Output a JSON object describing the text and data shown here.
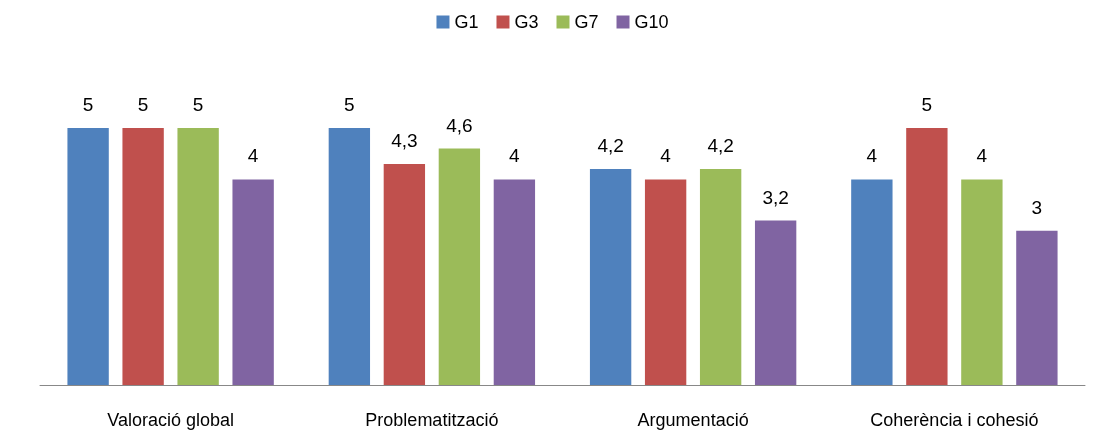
{
  "chart_data": {
    "type": "bar",
    "categories": [
      "Valoració global",
      "Problematització",
      "Argumentació",
      "Coherència i cohesió"
    ],
    "series": [
      {
        "name": "G1",
        "color": "#4f81bd",
        "values": [
          5,
          5,
          4.2,
          4
        ],
        "value_labels": [
          "5",
          "5",
          "4,2",
          "4"
        ]
      },
      {
        "name": "G3",
        "color": "#c0504d",
        "values": [
          5,
          4.3,
          4,
          5
        ],
        "value_labels": [
          "5",
          "4,3",
          "4",
          "5"
        ]
      },
      {
        "name": "G7",
        "color": "#9bbb59",
        "values": [
          5,
          4.6,
          4.2,
          4
        ],
        "value_labels": [
          "5",
          "4,6",
          "4,2",
          "4"
        ]
      },
      {
        "name": "G10",
        "color": "#8064a2",
        "values": [
          4,
          4,
          3.2,
          3
        ],
        "value_labels": [
          "4",
          "4",
          "3,2",
          "3"
        ]
      }
    ],
    "legend": "top"
  }
}
